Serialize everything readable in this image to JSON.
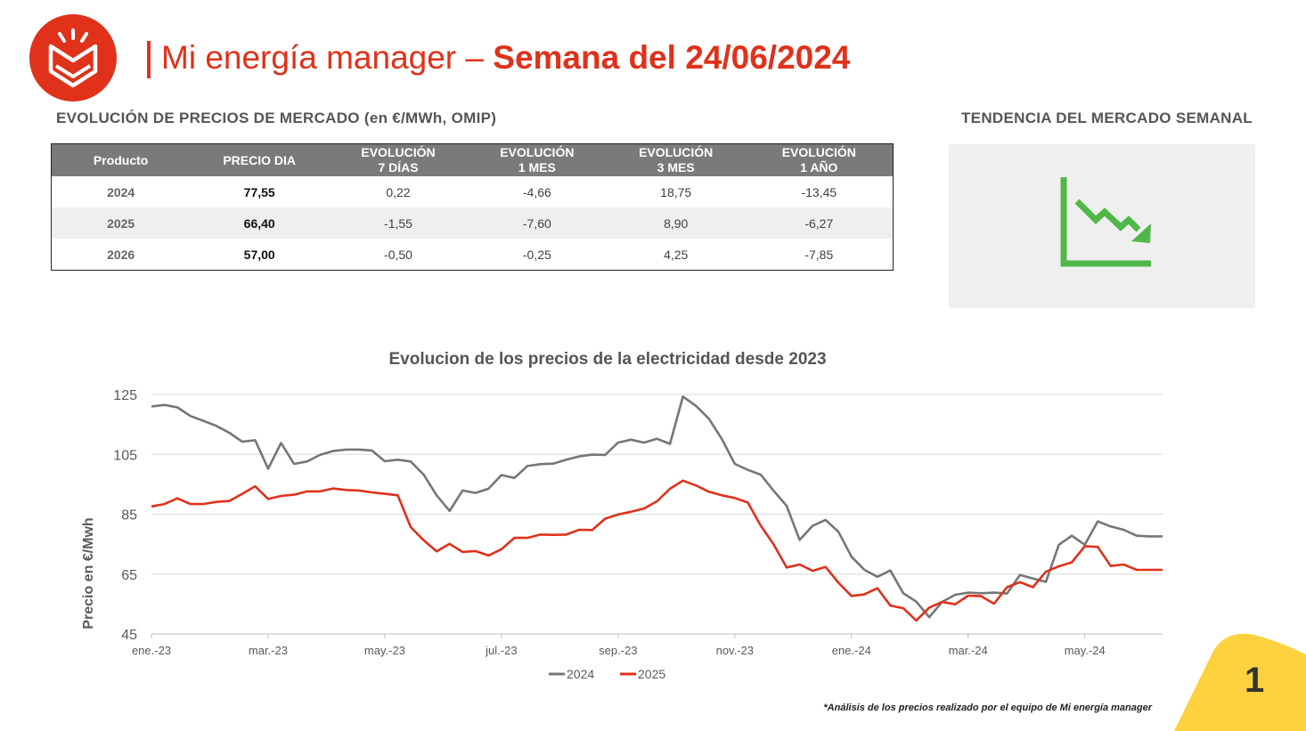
{
  "header": {
    "title_light": "Mi energía manager –",
    "title_bold": "Semana del 24/06/2024"
  },
  "left_section_title": "EVOLUCIÓN DE PRECIOS DE MERCADO (en €/MWh, OMIP)",
  "right_section_title": "TENDENCIA DEL MERCADO SEMANAL",
  "table": {
    "headers": [
      {
        "l1": "Producto",
        "l2": ""
      },
      {
        "l1": "PRECIO DIA",
        "l2": ""
      },
      {
        "l1": "EVOLUCIÓN",
        "l2": "7 DÍAS"
      },
      {
        "l1": "EVOLUCIÓN",
        "l2": "1 MES"
      },
      {
        "l1": "EVOLUCIÓN",
        "l2": "3 MES"
      },
      {
        "l1": "EVOLUCIÓN",
        "l2": "1 AÑO"
      }
    ],
    "rows": [
      [
        "2024",
        "77,55",
        "0,22",
        "-4,66",
        "18,75",
        "-13,45"
      ],
      [
        "2025",
        "66,40",
        "-1,55",
        "-7,60",
        "8,90",
        "-6,27"
      ],
      [
        "2026",
        "57,00",
        "-0,50",
        "-0,25",
        "4,25",
        "-7,85"
      ]
    ]
  },
  "trend_icon": "chart-trend-down-icon",
  "colors": {
    "brand": "#e0311a",
    "trend": "#4fb848",
    "series_2024": "#767676",
    "series_2025": "#e0311a",
    "corner": "#fdd23e"
  },
  "chart_data": {
    "type": "line",
    "title": "Evolucion de los precios de la electricidad desde 2023",
    "xlabel": "",
    "ylabel": "Precio en €/Mwh",
    "ylim": [
      45,
      125
    ],
    "yticks": [
      45,
      65,
      85,
      105,
      125
    ],
    "x_ticks": [
      {
        "label": "ene.-23",
        "index": 0
      },
      {
        "label": "mar.-23",
        "index": 9
      },
      {
        "label": "may.-23",
        "index": 18
      },
      {
        "label": "jul.-23",
        "index": 27
      },
      {
        "label": "sep.-23",
        "index": 36
      },
      {
        "label": "nov.-23",
        "index": 45
      },
      {
        "label": "ene.-24",
        "index": 54
      },
      {
        "label": "mar.-24",
        "index": 63
      },
      {
        "label": "may.-24",
        "index": 72
      }
    ],
    "x_count": 79,
    "grid": true,
    "legend": "bottom",
    "series": [
      {
        "name": "2024",
        "values": [
          121,
          121.5,
          120.7,
          117.8,
          116.2,
          114.5,
          112.2,
          109.2,
          109.7,
          100.2,
          108.8,
          101.8,
          102.6,
          104.8,
          106.1,
          106.6,
          106.6,
          106.3,
          102.7,
          103.2,
          102.6,
          98.2,
          91.3,
          86.1,
          92.9,
          92.1,
          93.5,
          98.1,
          97.1,
          101.1,
          101.7,
          101.9,
          103.2,
          104.3,
          104.9,
          104.8,
          108.9,
          109.9,
          108.9,
          110.2,
          108.5,
          124.3,
          121.2,
          116.9,
          110.1,
          101.8,
          99.8,
          98.2,
          92.8,
          87.8,
          76.4,
          81.1,
          83.1,
          79.1,
          70.8,
          66.4,
          64.1,
          66.2,
          58.6,
          55.8,
          50.6,
          55.7,
          58.1,
          58.8,
          58.6,
          58.8,
          58.5,
          64.7,
          63.5,
          62.4,
          74.8,
          77.8,
          74.8,
          82.6,
          80.9,
          79.8,
          77.8,
          77.6,
          77.6
        ]
      },
      {
        "name": "2025",
        "values": [
          87.6,
          88.4,
          90.3,
          88.4,
          88.4,
          89.1,
          89.4,
          91.8,
          94.3,
          90.1,
          91.1,
          91.5,
          92.6,
          92.6,
          93.6,
          93.1,
          92.9,
          92.3,
          91.8,
          91.3,
          80.7,
          76.3,
          72.6,
          75.1,
          72.4,
          72.7,
          71.2,
          73.3,
          77.1,
          77.1,
          78.2,
          78.1,
          78.2,
          79.8,
          79.7,
          83.5,
          84.9,
          85.8,
          86.9,
          89.3,
          93.5,
          96.2,
          94.6,
          92.5,
          91.3,
          90.4,
          88.9,
          81.2,
          74.9,
          67.2,
          68.2,
          66.1,
          67.4,
          62.1,
          57.7,
          58.2,
          60.3,
          54.5,
          53.6,
          49.5,
          53.8,
          55.7,
          54.9,
          57.8,
          57.6,
          55.1,
          60.6,
          62.3,
          60.6,
          65.8,
          67.6,
          68.9,
          74.3,
          74.1,
          67.7,
          68.2,
          66.4,
          66.4,
          66.4
        ]
      }
    ]
  },
  "footnote": "*Análisis de los precios realizado por el equipo de Mi energía manager",
  "page_number": "1"
}
